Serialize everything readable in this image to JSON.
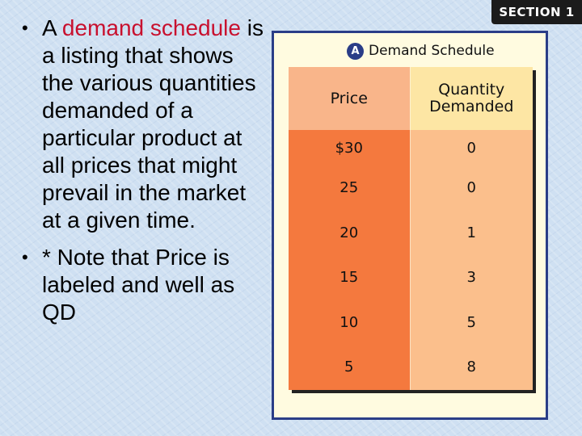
{
  "section_badge": "SECTION 1",
  "bullets": [
    {
      "prefix": "A ",
      "highlight": "demand schedule",
      "rest": " is a listing that shows the various quantities demanded of a particular product at all prices that might prevail in the market at a given time."
    },
    {
      "text": "* Note that Price is labeled and well as QD"
    }
  ],
  "table": {
    "badge": "A",
    "title": "Demand Schedule",
    "headers": [
      "Price",
      "Quantity Demanded"
    ],
    "prices": [
      "$30",
      "25",
      "20",
      "15",
      "10",
      "5"
    ],
    "quantities": [
      "0",
      "0",
      "1",
      "3",
      "5",
      "8"
    ]
  },
  "colors": {
    "highlight_text": "#c8102e",
    "panel_border": "#2a3d87",
    "price_column": "#f4793e",
    "quantity_column": "#fbbf8c"
  }
}
